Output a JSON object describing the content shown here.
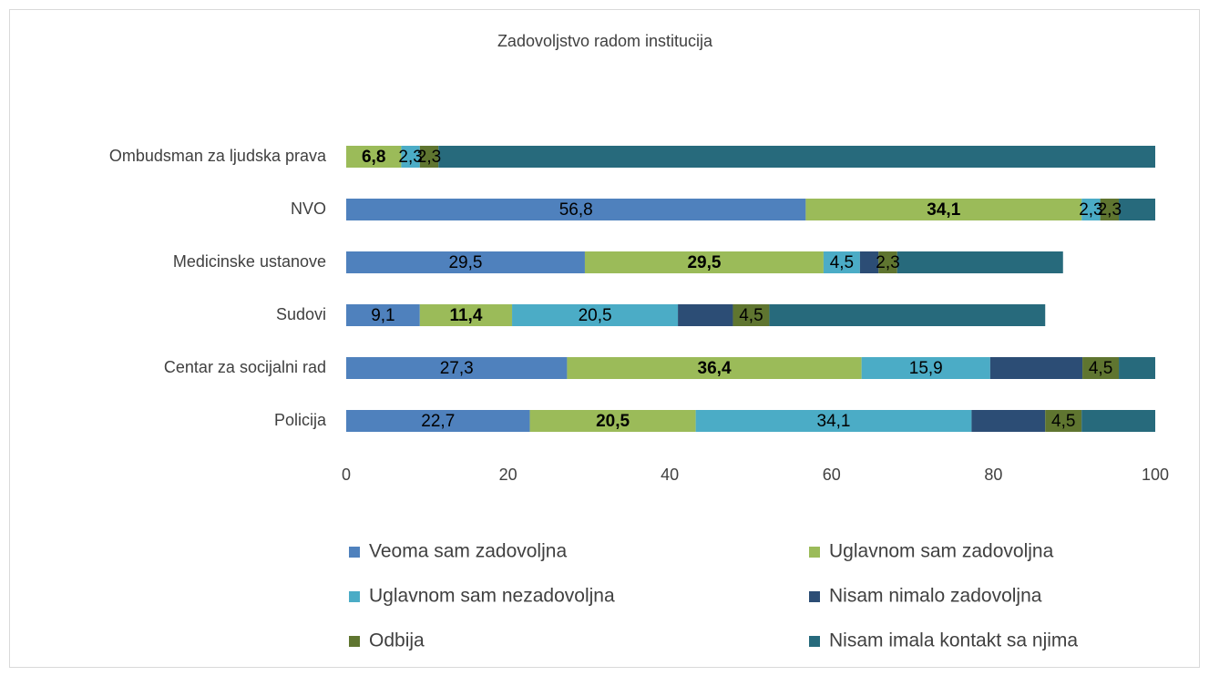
{
  "chart_data": {
    "type": "stacked_barh",
    "title": "Zadovoljstvo radom institucija",
    "categories": [
      "Ombudsman za ljudska prava",
      "NVO",
      "Medicinske ustanove",
      "Sudovi",
      "Centar za socijalni rad",
      "Policija"
    ],
    "series": [
      {
        "name": "Veoma sam zadovoljna",
        "color": "#4f81bd",
        "label_weight": "normal",
        "values": [
          0,
          56.8,
          29.5,
          9.1,
          27.3,
          22.7
        ],
        "value_labels": [
          null,
          "56,8",
          "29,5",
          "9,1",
          "27,3",
          "22,7"
        ]
      },
      {
        "name": "Uglavnom sam zadovoljna",
        "color": "#9bbb59",
        "label_weight": "bold",
        "values": [
          6.8,
          34.1,
          29.5,
          11.4,
          36.4,
          20.5
        ],
        "value_labels": [
          "6,8",
          "34,1",
          "29,5",
          "11,4",
          "36,4",
          "20,5"
        ]
      },
      {
        "name": "Uglavnom sam nezadovoljna",
        "color": "#4bacc6",
        "label_weight": "normal",
        "values": [
          2.3,
          2.3,
          4.5,
          20.5,
          15.9,
          34.1
        ],
        "value_labels": [
          "2,3",
          "2,3",
          "4,5",
          "20,5",
          "15,9",
          "34,1"
        ]
      },
      {
        "name": "Nisam nimalo zadovoljna",
        "color": "#2c4d75",
        "label_weight": "normal",
        "values": [
          0,
          0,
          2.3,
          6.8,
          11.4,
          9.1
        ],
        "value_labels": [
          null,
          null,
          null,
          null,
          null,
          null
        ]
      },
      {
        "name": "Odbija",
        "color": "#5f7530",
        "label_weight": "normal",
        "values": [
          2.3,
          2.3,
          2.3,
          4.5,
          4.5,
          4.5
        ],
        "value_labels": [
          "2,3",
          "2,3",
          "2,3",
          "4,5",
          "4,5",
          "4,5"
        ]
      },
      {
        "name": "Nisam imala kontakt sa njima",
        "color": "#276a7c",
        "label_weight": "normal",
        "values": [
          88.6,
          4.5,
          20.5,
          34.1,
          4.5,
          9.1
        ],
        "value_labels": [
          null,
          null,
          null,
          null,
          null,
          null
        ]
      }
    ],
    "xlim": [
      0,
      100
    ],
    "xticks": [
      0,
      20,
      40,
      60,
      80,
      100
    ],
    "grid": false,
    "legend": "bottom"
  }
}
